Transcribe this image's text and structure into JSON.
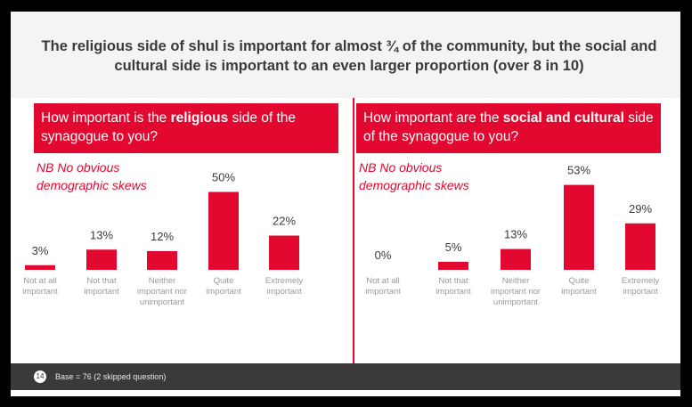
{
  "headline": "The religious side of shul is important for almost ¾ of the community, but the social and cultural side is important to an even larger proportion (over 8 in 10)",
  "panels": [
    {
      "question_pre": "How important is the ",
      "question_bold": "religious",
      "question_post": " side of the synagogue to you?",
      "note_line1": "NB No obvious",
      "note_line2": "demographic skews"
    },
    {
      "question_pre": "How important are the ",
      "question_bold": "social and cultural",
      "question_post": " side of the synagogue to you?",
      "note_line1": "NB No obvious",
      "note_line2": "demographic skews"
    }
  ],
  "footer": {
    "page_number": "14",
    "base_note": "Base = 76 (2 skipped question)"
  },
  "colors": {
    "accent": "#e3082f",
    "text_dark": "#3a3a3a",
    "axis_label": "#9a9a9a",
    "footer_bg": "#3a3a3a"
  },
  "chart_data": [
    {
      "type": "bar",
      "categories": [
        [
          "Not at all",
          "important"
        ],
        [
          "Not that",
          "important"
        ],
        [
          "Neither",
          "important nor",
          "unimportant"
        ],
        [
          "Quite",
          "important"
        ],
        [
          "Extremely",
          "important"
        ]
      ],
      "values": [
        3,
        13,
        12,
        50,
        22
      ],
      "value_labels": [
        "3%",
        "13%",
        "12%",
        "50%",
        "22%"
      ],
      "unit": "%"
    },
    {
      "type": "bar",
      "categories": [
        [
          "Not at all",
          "important"
        ],
        [
          "Not that",
          "important"
        ],
        [
          "Neither",
          "important nor",
          "unimportant"
        ],
        [
          "Quite",
          "important"
        ],
        [
          "Extremely",
          "important"
        ]
      ],
      "values": [
        0,
        5,
        13,
        53,
        29
      ],
      "value_labels": [
        "0%",
        "5%",
        "13%",
        "53%",
        "29%"
      ],
      "unit": "%"
    }
  ]
}
